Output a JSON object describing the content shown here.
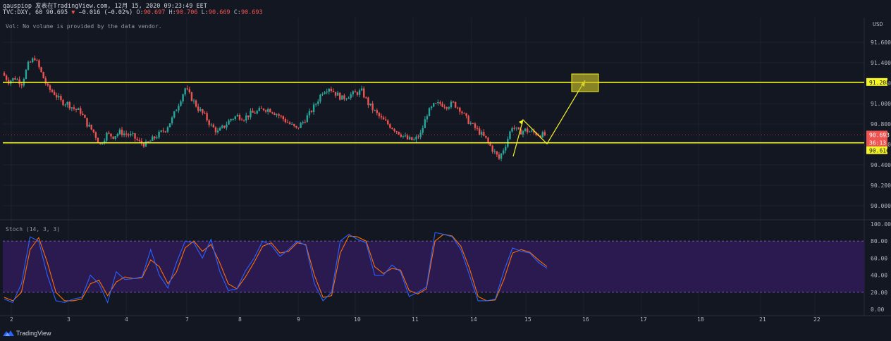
{
  "header": {
    "line1": "qauspiop 发表在TradingView.com, 12月 15, 2020 09:23:49 EET",
    "symbol": "TVC:DXY, 60",
    "last": "90.695",
    "change": "−0.016 (−0.02%)",
    "o_label": "O:",
    "o": "90.697",
    "h_label": "H:",
    "h": "90.706",
    "l_label": "L:",
    "l": "90.669",
    "c_label": "C:",
    "c": "90.693",
    "down_arrow": "▼"
  },
  "volume_note": "Vol: No volume is provided by the data vendor.",
  "price_axis": {
    "currency": "USD",
    "ticks": [
      "91.600",
      "91.400",
      "91.200",
      "91.000",
      "90.800",
      "90.600",
      "90.400",
      "90.200",
      "90.000"
    ],
    "labels": {
      "resistance": "91.208",
      "last_price": "90.693",
      "countdown": "36:13",
      "support": "90.616"
    }
  },
  "stoch": {
    "title": "Stoch (14, 3, 3)",
    "ticks": [
      "100.00",
      "80.00",
      "60.00",
      "40.00",
      "20.00",
      "0.00"
    ]
  },
  "time_axis": [
    "2",
    "3",
    "4",
    "7",
    "8",
    "9",
    "10",
    "11",
    "14",
    "15",
    "16",
    "17",
    "18",
    "21",
    "22"
  ],
  "footer": {
    "brand": "TradingView"
  },
  "colors": {
    "background": "#131722",
    "grid": "#1e222d",
    "up": "#26a69a",
    "down": "#ef5350",
    "level_line": "#f5f528",
    "stoch_k": "#2962ff",
    "stoch_d": "#ff6d00",
    "stoch_band": "#2a1a4f"
  },
  "chart_data": {
    "type": "candlestick",
    "levels": [
      91.208,
      90.616
    ],
    "last_price": 90.693,
    "price_range": [
      89.92,
      91.72
    ],
    "close_path": [
      91.3,
      91.22,
      91.25,
      91.2,
      91.38,
      91.45,
      91.3,
      91.15,
      91.1,
      91.02,
      91.0,
      90.95,
      90.92,
      90.8,
      90.72,
      90.6,
      90.7,
      90.68,
      90.72,
      90.7,
      90.68,
      90.62,
      90.6,
      90.65,
      90.7,
      90.75,
      90.85,
      91.0,
      91.15,
      91.05,
      90.95,
      90.88,
      90.78,
      90.72,
      90.78,
      90.85,
      90.88,
      90.86,
      90.9,
      90.92,
      90.95,
      90.94,
      90.9,
      90.85,
      90.8,
      90.75,
      90.82,
      90.9,
      91.0,
      91.12,
      91.16,
      91.1,
      91.05,
      91.08,
      91.1,
      91.12,
      91.0,
      90.92,
      90.85,
      90.8,
      90.75,
      90.7,
      90.65,
      90.64,
      90.7,
      90.9,
      90.98,
      91.0,
      90.98,
      91.0,
      90.95,
      90.85,
      90.78,
      90.72,
      90.65,
      90.55,
      90.46,
      90.6,
      90.78,
      90.72,
      90.74,
      90.72,
      90.7,
      90.69
    ],
    "stoch_k": [
      12,
      8,
      30,
      85,
      80,
      40,
      10,
      8,
      12,
      14,
      40,
      30,
      8,
      44,
      35,
      36,
      38,
      70,
      40,
      25,
      55,
      80,
      78,
      60,
      82,
      45,
      22,
      24,
      45,
      60,
      80,
      75,
      62,
      70,
      80,
      75,
      30,
      10,
      20,
      80,
      88,
      82,
      78,
      40,
      40,
      52,
      44,
      15,
      20,
      26,
      90,
      88,
      85,
      70,
      40,
      10,
      10,
      12,
      45,
      72,
      68,
      66,
      55,
      48
    ],
    "stoch_d": [
      14,
      10,
      20,
      70,
      84,
      55,
      20,
      10,
      10,
      12,
      30,
      34,
      16,
      32,
      38,
      36,
      37,
      58,
      50,
      30,
      44,
      72,
      80,
      68,
      76,
      55,
      30,
      24,
      38,
      55,
      74,
      78,
      66,
      68,
      78,
      76,
      40,
      14,
      16,
      66,
      86,
      85,
      80,
      50,
      42,
      48,
      46,
      22,
      18,
      24,
      80,
      88,
      86,
      74,
      48,
      15,
      10,
      11,
      35,
      66,
      70,
      67,
      58,
      50
    ],
    "projection": [
      [
        728,
        222
      ],
      [
        742,
        170
      ],
      [
        776,
        204
      ],
      [
        830,
        114
      ]
    ],
    "target_box_level": 91.208
  }
}
